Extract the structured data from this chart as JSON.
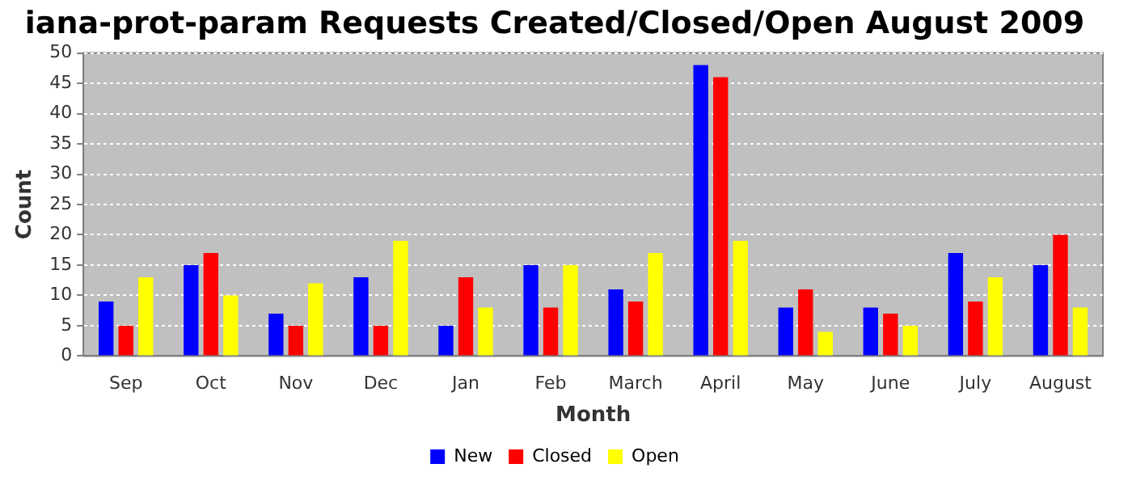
{
  "chart_data": {
    "type": "bar",
    "title": "iana-prot-param Requests Created/Closed/Open August 2009",
    "xlabel": "Month",
    "ylabel": "Count",
    "categories": [
      "Sep",
      "Oct",
      "Nov",
      "Dec",
      "Jan",
      "Feb",
      "March",
      "April",
      "May",
      "June",
      "July",
      "August"
    ],
    "series": [
      {
        "name": "New",
        "color": "#0000ff",
        "values": [
          9,
          15,
          7,
          13,
          5,
          15,
          11,
          48,
          8,
          8,
          17,
          15
        ]
      },
      {
        "name": "Closed",
        "color": "#ff0000",
        "values": [
          5,
          17,
          5,
          5,
          13,
          8,
          9,
          46,
          11,
          7,
          9,
          20
        ]
      },
      {
        "name": "Open",
        "color": "#ffff00",
        "values": [
          13,
          10,
          12,
          19,
          8,
          15,
          17,
          19,
          4,
          5,
          13,
          8
        ]
      }
    ],
    "ylim": [
      0,
      50
    ],
    "yticks": [
      0,
      5,
      10,
      15,
      20,
      25,
      30,
      35,
      40,
      45,
      50
    ],
    "grid": "y",
    "legend": "bottom"
  }
}
